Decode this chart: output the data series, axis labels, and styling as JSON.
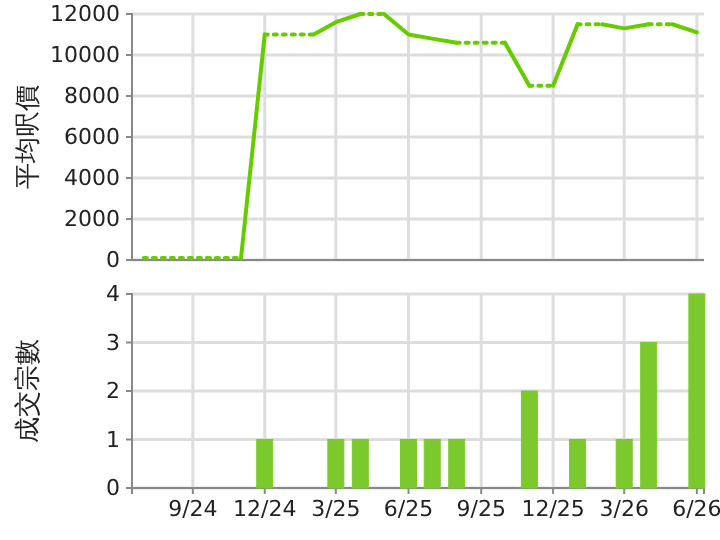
{
  "chart_data": [
    {
      "type": "line",
      "ylabel": "平均呎價",
      "xlim": [
        "2024-06-16",
        "2026-06-10"
      ],
      "ylim": [
        0,
        12000
      ],
      "yticks": [
        0,
        2000,
        4000,
        6000,
        8000,
        10000,
        12000
      ],
      "xticks": [
        {
          "value": "2024-09",
          "label": null
        },
        {
          "value": "2024-12",
          "label": null
        },
        {
          "value": "2025-03",
          "label": null
        },
        {
          "value": "2025-06",
          "label": null
        },
        {
          "value": "2025-09",
          "label": null
        },
        {
          "value": "2025-12",
          "label": null
        },
        {
          "value": "2026-03",
          "label": null
        },
        {
          "value": "2026-06",
          "label": null
        }
      ],
      "grid": true,
      "tick_labels": "y",
      "marker": "none",
      "series": [
        {
          "color": "#66cc00",
          "line_style": "dotted",
          "x": [
            "2024-07",
            "2024-08",
            "2024-09",
            "2024-10",
            "2024-11"
          ],
          "values": [
            100,
            100,
            100,
            100,
            100
          ]
        },
        {
          "color": "#66cc00",
          "line_style": "solid",
          "x": [
            "2024-11",
            "2024-12"
          ],
          "values": [
            100,
            11000
          ]
        },
        {
          "color": "#66cc00",
          "line_style": "dotted",
          "x": [
            "2024-12",
            "2025-01",
            "2025-02"
          ],
          "values": [
            11000,
            11000,
            11000
          ]
        },
        {
          "color": "#66cc00",
          "line_style": "solid",
          "x": [
            "2025-02",
            "2025-03",
            "2025-04"
          ],
          "values": [
            11000,
            11600,
            12000
          ]
        },
        {
          "color": "#66cc00",
          "line_style": "dotted",
          "x": [
            "2025-04",
            "2025-05"
          ],
          "values": [
            12000,
            12000
          ]
        },
        {
          "color": "#66cc00",
          "line_style": "solid",
          "x": [
            "2025-05",
            "2025-06",
            "2025-07",
            "2025-08"
          ],
          "values": [
            12000,
            11000,
            10800,
            10600
          ]
        },
        {
          "color": "#66cc00",
          "line_style": "dotted",
          "x": [
            "2025-08",
            "2025-09",
            "2025-10"
          ],
          "values": [
            10600,
            10600,
            10600
          ]
        },
        {
          "color": "#66cc00",
          "line_style": "solid",
          "x": [
            "2025-10",
            "2025-11"
          ],
          "values": [
            10600,
            8500
          ]
        },
        {
          "color": "#66cc00",
          "line_style": "dotted",
          "x": [
            "2025-11",
            "2025-12"
          ],
          "values": [
            8500,
            8500
          ]
        },
        {
          "color": "#66cc00",
          "line_style": "solid",
          "x": [
            "2025-12",
            "2026-01"
          ],
          "values": [
            8500,
            11500
          ]
        },
        {
          "color": "#66cc00",
          "line_style": "dotted",
          "x": [
            "2026-01",
            "2026-02"
          ],
          "values": [
            11500,
            11500
          ]
        },
        {
          "color": "#66cc00",
          "line_style": "solid",
          "x": [
            "2026-02",
            "2026-03",
            "2026-04"
          ],
          "values": [
            11500,
            11300,
            11500
          ]
        },
        {
          "color": "#66cc00",
          "line_style": "dotted",
          "x": [
            "2026-04",
            "2026-05"
          ],
          "values": [
            11500,
            11500
          ]
        },
        {
          "color": "#66cc00",
          "line_style": "solid",
          "x": [
            "2026-05",
            "2026-06"
          ],
          "values": [
            11500,
            11100
          ]
        }
      ]
    },
    {
      "type": "bar",
      "ylabel": "成交宗數",
      "xlim": [
        "2024-06-16",
        "2026-06-10"
      ],
      "ylim": [
        0,
        4
      ],
      "yticks": [
        0,
        1,
        2,
        3,
        4
      ],
      "xticks": [
        {
          "value": "2024-09",
          "label": "9/24"
        },
        {
          "value": "2024-12",
          "label": "12/24"
        },
        {
          "value": "2025-03",
          "label": "3/25"
        },
        {
          "value": "2025-06",
          "label": "6/25"
        },
        {
          "value": "2025-09",
          "label": "9/25"
        },
        {
          "value": "2025-12",
          "label": "12/25"
        },
        {
          "value": "2026-03",
          "label": "3/26"
        },
        {
          "value": "2026-06",
          "label": "6/26"
        }
      ],
      "grid": true,
      "color": "#7cc92e",
      "x": [
        "2024-12",
        "2025-03",
        "2025-04",
        "2025-06",
        "2025-07",
        "2025-08",
        "2025-11",
        "2026-01",
        "2026-03",
        "2026-04",
        "2026-06"
      ],
      "values": [
        1,
        1,
        1,
        1,
        1,
        1,
        2,
        1,
        1,
        3,
        4
      ]
    }
  ]
}
